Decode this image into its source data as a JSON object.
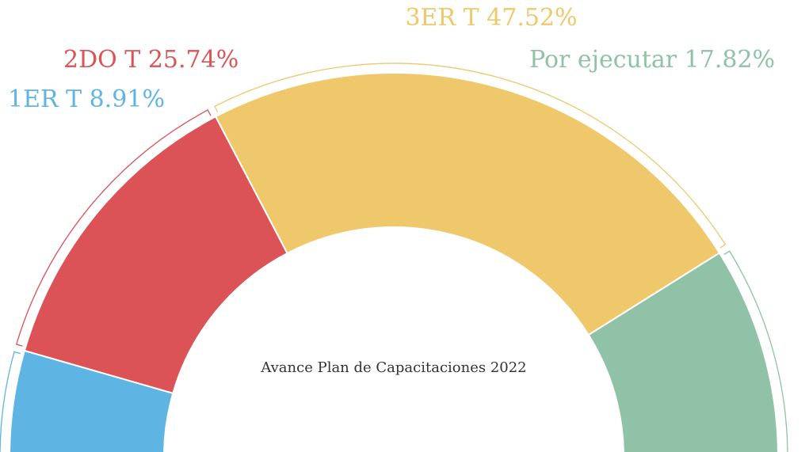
{
  "chart_data": {
    "type": "semi-donut",
    "title": "Avance Plan de Capacitaciones 2022",
    "categories": [
      "1ER T",
      "2DO T",
      "3ER T",
      "Por ejecutar"
    ],
    "values": [
      8.91,
      25.74,
      47.52,
      17.82
    ],
    "value_labels": [
      "8.91%",
      "25.74%",
      "47.52%",
      "17.82%"
    ],
    "colors": [
      "#5eb5e4",
      "#db5356",
      "#eec86a",
      "#8fc2a6"
    ]
  }
}
